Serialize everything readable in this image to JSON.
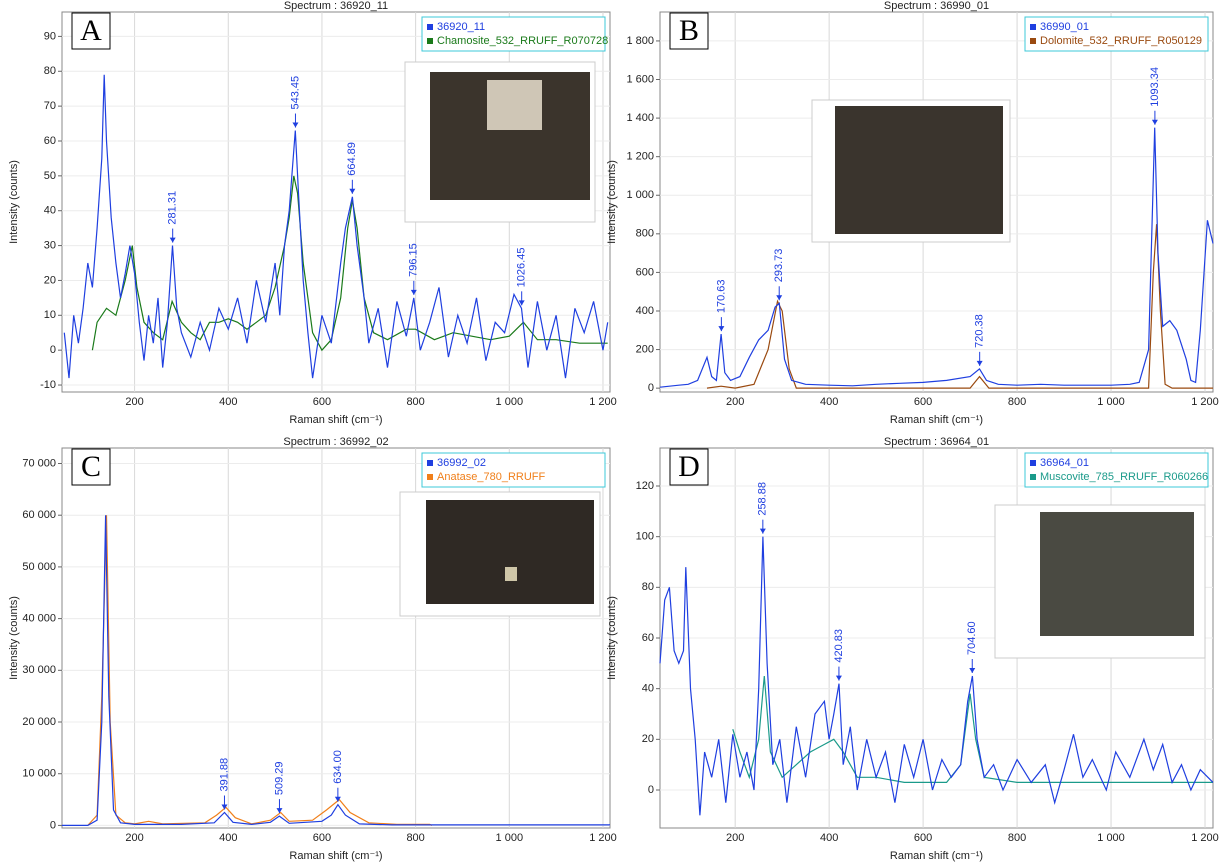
{
  "chart_data": [
    {
      "type": "line",
      "title": "Spectrum : 36920_11",
      "panel_label": "A",
      "x_label": "Raman shift (cm⁻¹)",
      "y_label": "Intensity (counts)",
      "xlim": [
        45,
        1215
      ],
      "ylim": [
        -12,
        97
      ],
      "grid": true,
      "legend": "top-right",
      "xticks": [
        200,
        400,
        600,
        800,
        {
          "value": 1000,
          "label": "1 000"
        },
        {
          "value": 1200,
          "label": "1 200"
        }
      ],
      "yticks": [
        -10,
        0,
        10,
        20,
        30,
        40,
        50,
        60,
        70,
        80,
        90
      ],
      "series": [
        {
          "name": "36920_11",
          "color": "#1f3fe0",
          "x": [
            50,
            60,
            70,
            80,
            90,
            100,
            110,
            120,
            130,
            135,
            140,
            150,
            160,
            170,
            180,
            190,
            200,
            210,
            220,
            230,
            240,
            250,
            260,
            270,
            281,
            290,
            300,
            320,
            340,
            360,
            380,
            400,
            420,
            440,
            460,
            480,
            500,
            510,
            520,
            530,
            543,
            550,
            560,
            570,
            580,
            600,
            620,
            640,
            650,
            665,
            675,
            690,
            700,
            720,
            740,
            760,
            780,
            796,
            810,
            830,
            850,
            870,
            890,
            910,
            930,
            950,
            970,
            990,
            1010,
            1026,
            1040,
            1060,
            1080,
            1100,
            1120,
            1140,
            1160,
            1180,
            1200,
            1210
          ],
          "values": [
            5,
            -8,
            10,
            2,
            12,
            25,
            18,
            35,
            55,
            79,
            60,
            38,
            25,
            15,
            22,
            30,
            22,
            8,
            -3,
            10,
            2,
            15,
            -5,
            8,
            30,
            12,
            5,
            -2,
            8,
            0,
            12,
            6,
            15,
            2,
            20,
            8,
            25,
            10,
            30,
            40,
            63,
            45,
            20,
            5,
            -8,
            10,
            2,
            25,
            35,
            44,
            30,
            15,
            2,
            12,
            -5,
            14,
            4,
            15,
            0,
            8,
            18,
            -2,
            10,
            2,
            15,
            -3,
            8,
            5,
            16,
            12,
            -5,
            14,
            0,
            10,
            -8,
            12,
            5,
            14,
            0,
            8
          ]
        },
        {
          "name": "Chamosite_532_RRUFF_R070728",
          "color": "#1a7a1a",
          "x": [
            110,
            120,
            140,
            160,
            180,
            195,
            205,
            220,
            240,
            260,
            280,
            300,
            320,
            340,
            360,
            380,
            400,
            420,
            440,
            460,
            480,
            500,
            520,
            530,
            540,
            548,
            560,
            580,
            600,
            620,
            640,
            655,
            665,
            675,
            690,
            710,
            740,
            780,
            800,
            840,
            880,
            920,
            960,
            1000,
            1030,
            1060,
            1100,
            1150,
            1210
          ],
          "values": [
            0,
            8,
            12,
            10,
            20,
            30,
            18,
            8,
            5,
            3,
            14,
            8,
            5,
            3,
            8,
            8,
            9,
            8,
            6,
            8,
            10,
            18,
            30,
            38,
            50,
            45,
            25,
            5,
            0,
            3,
            15,
            35,
            43,
            35,
            15,
            5,
            3,
            6,
            6,
            3,
            5,
            4,
            3,
            4,
            8,
            3,
            3,
            2,
            2
          ]
        }
      ],
      "annotations": [
        {
          "label": "281.31",
          "x": 281.31,
          "y": 30
        },
        {
          "label": "543.45",
          "x": 543.45,
          "y": 63
        },
        {
          "label": "664.89",
          "x": 664.89,
          "y": 44
        },
        {
          "label": "796.15",
          "x": 796.15,
          "y": 15
        },
        {
          "label": "1026.45",
          "x": 1026.45,
          "y": 12
        }
      ]
    },
    {
      "type": "line",
      "title": "Spectrum : 36990_01",
      "panel_label": "B",
      "x_label": "Raman shift (cm⁻¹)",
      "y_label": "Intensity (counts)",
      "xlim": [
        40,
        1217
      ],
      "ylim": [
        -20,
        1950
      ],
      "grid": true,
      "legend": "top-right",
      "xticks": [
        200,
        400,
        600,
        800,
        {
          "value": 1000,
          "label": "1 000"
        },
        {
          "value": 1200,
          "label": "1 200"
        }
      ],
      "yticks": [
        0,
        200,
        400,
        600,
        800,
        {
          "value": 1000,
          "label": "1 000"
        },
        {
          "value": 1200,
          "label": "1 200"
        },
        {
          "value": 1400,
          "label": "1 400"
        },
        {
          "value": 1600,
          "label": "1 600"
        },
        {
          "value": 1800,
          "label": "1 800"
        }
      ],
      "series": [
        {
          "name": "36990_01",
          "color": "#1f3fe0",
          "x": [
            40,
            60,
            80,
            100,
            120,
            140,
            150,
            160,
            170,
            178,
            190,
            210,
            230,
            250,
            270,
            285,
            294,
            305,
            320,
            350,
            400,
            450,
            500,
            550,
            600,
            650,
            700,
            720,
            735,
            760,
            800,
            850,
            900,
            950,
            1000,
            1040,
            1060,
            1080,
            1093,
            1100,
            1110,
            1125,
            1140,
            1160,
            1170,
            1180,
            1190,
            1205,
            1217
          ],
          "values": [
            5,
            10,
            15,
            20,
            40,
            160,
            60,
            40,
            280,
            80,
            40,
            60,
            160,
            250,
            300,
            420,
            440,
            150,
            40,
            20,
            15,
            12,
            20,
            25,
            30,
            40,
            60,
            100,
            40,
            20,
            15,
            20,
            15,
            15,
            15,
            20,
            30,
            200,
            1350,
            700,
            320,
            350,
            300,
            150,
            40,
            30,
            300,
            870,
            750
          ]
        },
        {
          "name": "Dolomite_532_RRUFF_R050129",
          "color": "#9a4a10",
          "x": [
            140,
            170,
            200,
            240,
            270,
            290,
            300,
            315,
            330,
            700,
            720,
            740,
            1080,
            1090,
            1097,
            1105,
            1115,
            1130,
            1217
          ],
          "values": [
            0,
            10,
            0,
            20,
            200,
            450,
            400,
            100,
            0,
            0,
            60,
            0,
            0,
            600,
            850,
            400,
            20,
            0,
            0
          ]
        }
      ],
      "annotations": [
        {
          "label": "170.63",
          "x": 170.63,
          "y": 280
        },
        {
          "label": "293.73",
          "x": 293.73,
          "y": 440
        },
        {
          "label": "720.38",
          "x": 720.38,
          "y": 100
        },
        {
          "label": "1093.34",
          "x": 1093.34,
          "y": 1350
        }
      ]
    },
    {
      "type": "line",
      "title": "Spectrum : 36992_02",
      "panel_label": "C",
      "x_label": "Raman shift (cm⁻¹)",
      "y_label": "Intensity (counts)",
      "xlim": [
        45,
        1215
      ],
      "ylim": [
        -500,
        73000
      ],
      "grid": true,
      "legend": "top-right",
      "xticks": [
        200,
        400,
        600,
        800,
        {
          "value": 1000,
          "label": "1 000"
        },
        {
          "value": 1200,
          "label": "1 200"
        }
      ],
      "yticks": [
        0,
        {
          "value": 10000,
          "label": "10 000"
        },
        {
          "value": 20000,
          "label": "20 000"
        },
        {
          "value": 30000,
          "label": "30 000"
        },
        {
          "value": 40000,
          "label": "40 000"
        },
        {
          "value": 50000,
          "label": "50 000"
        },
        {
          "value": 60000,
          "label": "60 000"
        },
        {
          "value": 70000,
          "label": "70 000"
        }
      ],
      "series": [
        {
          "name": "36992_02",
          "color": "#1f3fe0",
          "x": [
            45,
            100,
            120,
            130,
            138,
            145,
            155,
            170,
            200,
            300,
            370,
            392,
            410,
            450,
            490,
            509,
            530,
            600,
            620,
            634,
            650,
            680,
            750,
            850,
            1000,
            1215
          ],
          "values": [
            0,
            0,
            1000,
            20000,
            60000,
            25000,
            3000,
            500,
            200,
            200,
            500,
            2500,
            600,
            200,
            600,
            1800,
            400,
            800,
            2000,
            4000,
            2000,
            300,
            100,
            100,
            100,
            100
          ]
        },
        {
          "name": "Anatase_780_RRUFF",
          "color": "#f07f1a",
          "x": [
            100,
            120,
            130,
            140,
            148,
            160,
            180,
            200,
            230,
            260,
            350,
            375,
            395,
            415,
            450,
            490,
            512,
            530,
            580,
            610,
            637,
            660,
            700,
            760,
            830,
            835
          ],
          "values": [
            0,
            2000,
            25000,
            60000,
            20000,
            2000,
            500,
            300,
            800,
            300,
            500,
            2000,
            3500,
            1500,
            300,
            1000,
            2500,
            800,
            1000,
            3000,
            5000,
            2500,
            500,
            200,
            200,
            0
          ]
        }
      ],
      "annotations": [
        {
          "label": "391.88",
          "x": 391.88,
          "y": 2500
        },
        {
          "label": "509.29",
          "x": 509.29,
          "y": 1800
        },
        {
          "label": "634.00",
          "x": 634.0,
          "y": 4000
        }
      ]
    },
    {
      "type": "line",
      "title": "Spectrum : 36964_01",
      "panel_label": "D",
      "x_label": "Raman shift (cm⁻¹)",
      "y_label": "Intensity (counts)",
      "xlim": [
        40,
        1217
      ],
      "ylim": [
        -15,
        135
      ],
      "grid": true,
      "legend": "top-right",
      "xticks": [
        200,
        400,
        600,
        800,
        {
          "value": 1000,
          "label": "1 000"
        },
        {
          "value": 1200,
          "label": "1 200"
        }
      ],
      "yticks": [
        0,
        20,
        40,
        60,
        80,
        100,
        120
      ],
      "series": [
        {
          "name": "36964_01",
          "color": "#1f3fe0",
          "x": [
            40,
            50,
            60,
            70,
            80,
            90,
            95,
            105,
            115,
            125,
            135,
            150,
            165,
            180,
            195,
            210,
            225,
            240,
            250,
            259,
            268,
            280,
            295,
            310,
            330,
            350,
            370,
            390,
            400,
            410,
            421,
            430,
            445,
            460,
            480,
            500,
            520,
            540,
            560,
            580,
            600,
            620,
            640,
            660,
            680,
            695,
            705,
            715,
            730,
            750,
            770,
            800,
            830,
            860,
            880,
            900,
            920,
            940,
            960,
            990,
            1010,
            1040,
            1070,
            1090,
            1110,
            1130,
            1150,
            1170,
            1190,
            1217
          ],
          "values": [
            50,
            75,
            80,
            55,
            50,
            55,
            88,
            40,
            20,
            -10,
            15,
            5,
            20,
            -5,
            22,
            5,
            15,
            0,
            40,
            100,
            50,
            10,
            20,
            -5,
            25,
            5,
            30,
            35,
            20,
            30,
            42,
            10,
            25,
            0,
            20,
            5,
            15,
            -5,
            18,
            5,
            20,
            0,
            12,
            5,
            10,
            35,
            45,
            20,
            5,
            10,
            0,
            12,
            3,
            10,
            -5,
            8,
            22,
            5,
            12,
            0,
            15,
            5,
            20,
            8,
            18,
            3,
            10,
            0,
            8,
            3
          ]
        },
        {
          "name": "Muscovite_785_RRUFF_R060266",
          "color": "#1a9a8a",
          "x": [
            195,
            210,
            230,
            250,
            262,
            275,
            300,
            330,
            360,
            390,
            410,
            430,
            460,
            500,
            560,
            600,
            650,
            680,
            700,
            712,
            730,
            800,
            900,
            1000,
            1100,
            1217
          ],
          "values": [
            24,
            15,
            5,
            20,
            45,
            15,
            5,
            10,
            15,
            18,
            20,
            15,
            5,
            5,
            3,
            3,
            3,
            10,
            38,
            20,
            5,
            3,
            3,
            3,
            3,
            3
          ]
        }
      ],
      "annotations": [
        {
          "label": "258.88",
          "x": 258.88,
          "y": 100
        },
        {
          "label": "420.83",
          "x": 420.83,
          "y": 42
        },
        {
          "label": "704.60",
          "x": 704.6,
          "y": 45
        }
      ]
    }
  ]
}
